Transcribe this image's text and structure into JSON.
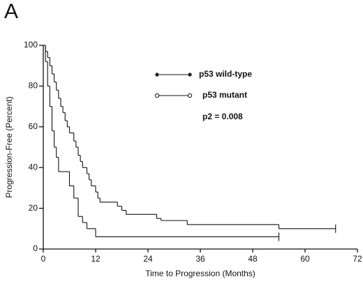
{
  "chart_data": {
    "type": "line",
    "step": true,
    "panel_label": "A",
    "xlabel": "Time to Progression (Months)",
    "ylabel": "Progression-Free (Percent)",
    "annotation": "p2 = 0.008",
    "xlim": [
      0,
      72
    ],
    "xticks": [
      0,
      12,
      24,
      36,
      48,
      60,
      72
    ],
    "ylim": [
      0,
      100
    ],
    "yticks": [
      0,
      20,
      40,
      60,
      80,
      100
    ],
    "series": [
      {
        "name": "p53 wild-type",
        "color": "#111111",
        "marker": "star",
        "x": [
          0,
          0.5,
          1,
          1.5,
          2,
          2.5,
          3,
          3.5,
          4,
          4.5,
          5,
          5.5,
          6,
          7,
          7.5,
          8,
          8.5,
          9,
          10,
          10.5,
          11,
          12,
          12.5,
          13,
          17,
          18,
          19,
          26,
          27,
          33,
          54,
          67
        ],
        "values": [
          100,
          97,
          94,
          90,
          86,
          82,
          78,
          74,
          70,
          67,
          63,
          60,
          57,
          53,
          50,
          46,
          43,
          40,
          37,
          34,
          31,
          28,
          25,
          23,
          21,
          19,
          17,
          15,
          14,
          12,
          10,
          10
        ]
      },
      {
        "name": "p53 mutant",
        "color": "#111111",
        "marker": "circle",
        "x": [
          0,
          0.5,
          1,
          1.5,
          2,
          2.5,
          3,
          3.5,
          6,
          7,
          8,
          9,
          10,
          12,
          54
        ],
        "values": [
          100,
          92,
          80,
          70,
          58,
          50,
          45,
          38,
          31,
          25,
          16,
          13,
          10,
          6,
          6
        ]
      }
    ]
  }
}
